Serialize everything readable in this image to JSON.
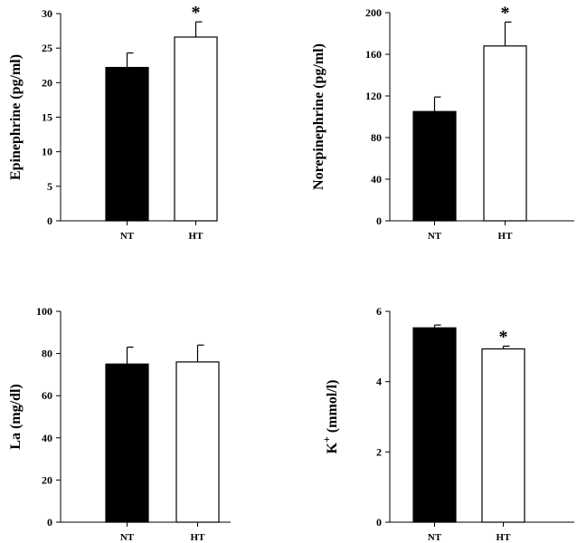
{
  "chart_data": [
    {
      "type": "bar",
      "categories": [
        "NT",
        "HT"
      ],
      "values": [
        22.2,
        26.6
      ],
      "errors": [
        2.1,
        2.2
      ],
      "fill_colors": [
        "#000000",
        "#ffffff"
      ],
      "significance": [
        "",
        "*"
      ],
      "ylabel": "Epinephrine (pg/ml)",
      "ylim": [
        0,
        30
      ],
      "yticks": [
        0,
        5,
        10,
        15,
        20,
        25,
        30
      ],
      "ytick_labels": [
        "0",
        "5",
        "10",
        "15",
        "20",
        "25",
        "30"
      ]
    },
    {
      "type": "bar",
      "categories": [
        "NT",
        "HT"
      ],
      "values": [
        105,
        168
      ],
      "errors": [
        14,
        23
      ],
      "fill_colors": [
        "#000000",
        "#ffffff"
      ],
      "significance": [
        "",
        "*"
      ],
      "ylabel": "Norepinephrine (pg/ml)",
      "ylim": [
        0,
        200
      ],
      "yticks": [
        0,
        40,
        80,
        120,
        160,
        200
      ],
      "ytick_labels": [
        "0",
        "40",
        "80",
        "120",
        "160",
        "200"
      ]
    },
    {
      "type": "bar",
      "categories": [
        "NT",
        "HT"
      ],
      "values": [
        75,
        76
      ],
      "errors": [
        8,
        8
      ],
      "fill_colors": [
        "#000000",
        "#ffffff"
      ],
      "significance": [
        "",
        ""
      ],
      "ylabel": "La (mg/dl)",
      "ylim": [
        0,
        100
      ],
      "yticks": [
        0,
        20,
        40,
        60,
        80,
        100
      ],
      "ytick_labels": [
        "0",
        "20",
        "40",
        "60",
        "80",
        "100"
      ]
    },
    {
      "type": "bar",
      "categories": [
        "NT",
        "HT"
      ],
      "values": [
        5.53,
        4.93
      ],
      "errors": [
        0.08,
        0.08
      ],
      "fill_colors": [
        "#000000",
        "#ffffff"
      ],
      "significance": [
        "",
        "*"
      ],
      "ylabel_main": "K",
      "ylabel_sup": "+",
      "ylabel_rest": " (mmol/l)",
      "ylim": [
        0,
        6
      ],
      "yticks": [
        0,
        2,
        4,
        6
      ],
      "ytick_labels": [
        "0",
        "2",
        "4",
        "6"
      ]
    }
  ]
}
